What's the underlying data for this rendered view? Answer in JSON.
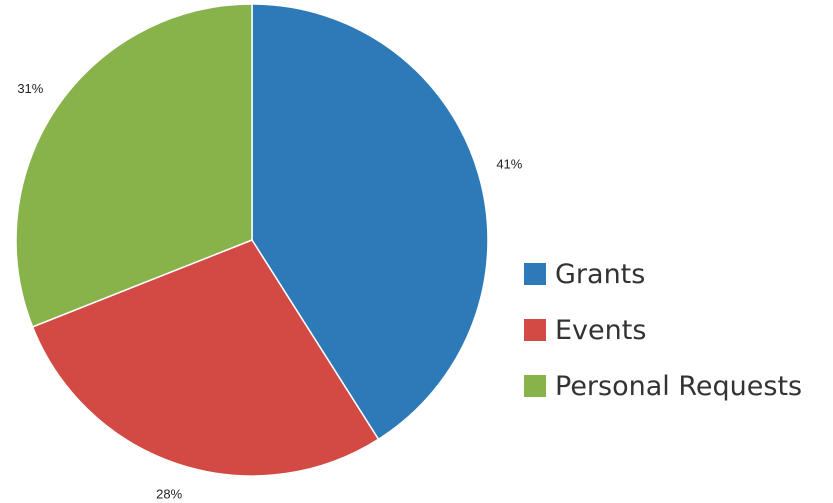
{
  "chart_data": {
    "type": "pie",
    "title": "",
    "categories": [
      "Grants",
      "Events",
      "Personal Requests"
    ],
    "values": [
      41,
      28,
      31
    ],
    "value_labels": [
      "41%",
      "28%",
      "31%"
    ],
    "colors": [
      "#2e7ab9",
      "#d34a45",
      "#87b34a"
    ],
    "start_angle_deg": 0,
    "direction": "clockwise",
    "legend_position": "right"
  }
}
